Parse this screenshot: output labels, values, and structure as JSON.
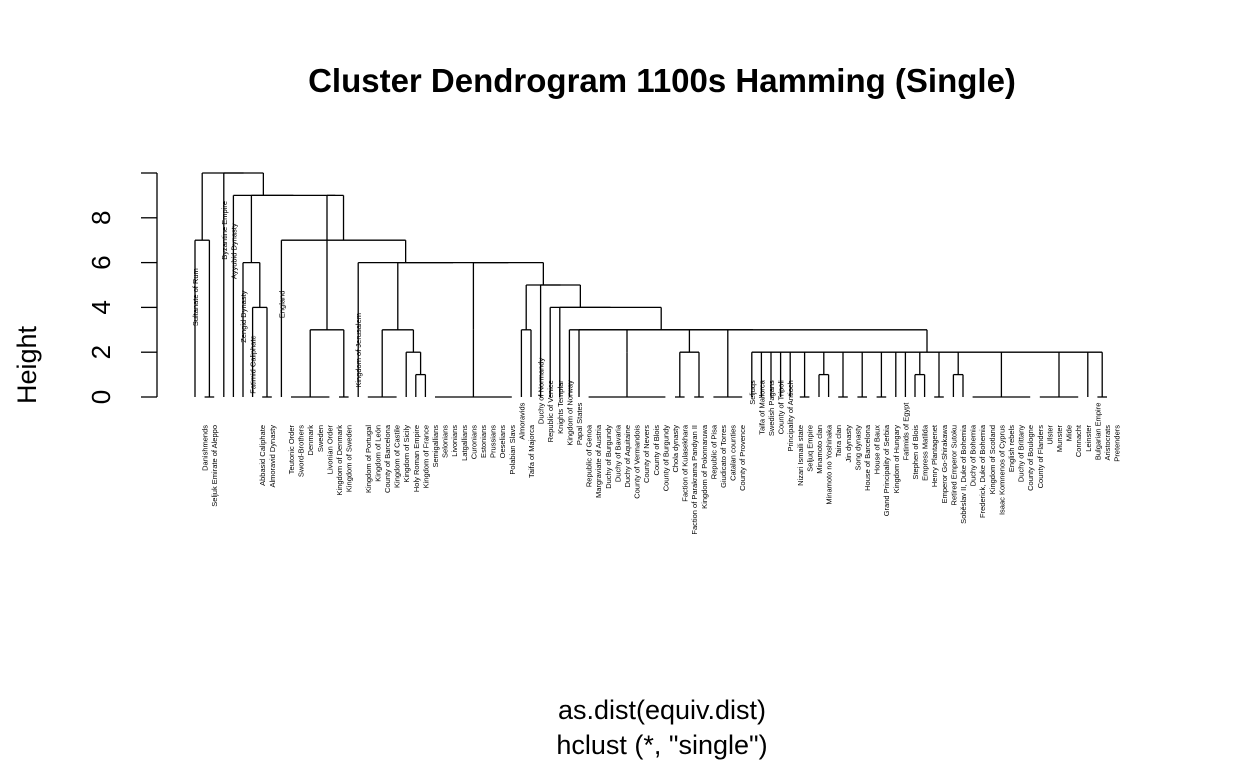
{
  "chart_data": {
    "type": "dendrogram",
    "title": "Cluster Dendrogram 1100s Hamming (Single)",
    "ylabel": "Height",
    "xlabel": "as.dist(equiv.dist)",
    "sub": "hclust (*, \"single\")",
    "ylim": [
      0,
      10
    ],
    "yticks": [
      0,
      2,
      4,
      6,
      8
    ],
    "leaves": [
      {
        "name": "Sultanate of Rum",
        "height": 7
      },
      {
        "name": "Danishmends",
        "height": 0
      },
      {
        "name": "Seljuk Emirate of Aleppo",
        "height": 0
      },
      {
        "name": "Byzantine Empire",
        "height": 10
      },
      {
        "name": "Ayyubid Dynasty",
        "height": 9
      },
      {
        "name": "Zengid Dynasty",
        "height": 6
      },
      {
        "name": "Fatimid Caliphate",
        "height": 4
      },
      {
        "name": "Abbasid Caliphate",
        "height": 0
      },
      {
        "name": "Almoravid Dynasty",
        "height": 0
      },
      {
        "name": "England",
        "height": 6
      },
      {
        "name": "Teutonic Order",
        "height": 0
      },
      {
        "name": "Sword-Brothers",
        "height": 0
      },
      {
        "name": "Denmark",
        "height": 0
      },
      {
        "name": "Sweden",
        "height": 0
      },
      {
        "name": "Livonian Order",
        "height": 0
      },
      {
        "name": "Kingdom of Denmark",
        "height": 0
      },
      {
        "name": "Kingdom of Sweden",
        "height": 0
      },
      {
        "name": "Kingdom of Jerusalem",
        "height": 5
      },
      {
        "name": "Kingdom of Portugal",
        "height": 0
      },
      {
        "name": "Kingdom of León",
        "height": 0
      },
      {
        "name": "County of Barcelona",
        "height": 0
      },
      {
        "name": "Kingdom of Castile",
        "height": 0
      },
      {
        "name": "Kingdom of Sicily",
        "height": 0
      },
      {
        "name": "Holy Roman Empire",
        "height": 0
      },
      {
        "name": "Kingdom of France",
        "height": 0
      },
      {
        "name": "Semigallians",
        "height": 0
      },
      {
        "name": "Selonians",
        "height": 0
      },
      {
        "name": "Livonians",
        "height": 0
      },
      {
        "name": "Latgallians",
        "height": 0
      },
      {
        "name": "Curonians",
        "height": 0
      },
      {
        "name": "Estonians",
        "height": 0
      },
      {
        "name": "Prussians",
        "height": 0
      },
      {
        "name": "Oeselians",
        "height": 0
      },
      {
        "name": "Polabian Slavs",
        "height": 0
      },
      {
        "name": "Almoravids",
        "height": 1
      },
      {
        "name": "Taifa of Majorca",
        "height": 0
      },
      {
        "name": "Duchy of Normandy",
        "height": 3
      },
      {
        "name": "Republic of Venice",
        "height": 2
      },
      {
        "name": "Knights Templar",
        "height": 2
      },
      {
        "name": "Kingdom of Norway",
        "height": 2
      },
      {
        "name": "Papal States",
        "height": 1
      },
      {
        "name": "Republic of Genoa",
        "height": 0
      },
      {
        "name": "Margraviate of Austria",
        "height": 0
      },
      {
        "name": "Duchy of Burgundy",
        "height": 0
      },
      {
        "name": "Duchy of Bavaria",
        "height": 0
      },
      {
        "name": "Duchy of Aquitaine",
        "height": 0
      },
      {
        "name": "County of Vermandois",
        "height": 0
      },
      {
        "name": "County of Nevers",
        "height": 0
      },
      {
        "name": "County of Blois",
        "height": 0
      },
      {
        "name": "County of Burgundy",
        "height": 0
      },
      {
        "name": "Chola dynasty",
        "height": 0
      },
      {
        "name": "Faction of Kulasekhara",
        "height": 0
      },
      {
        "name": "Faction of Parakrama Pandyan II",
        "height": 0
      },
      {
        "name": "Kingdom of Polonnaruwa",
        "height": 0
      },
      {
        "name": "Republic of Pisa",
        "height": 0
      },
      {
        "name": "Giudicato of Torres",
        "height": 0
      },
      {
        "name": "Catalan counties",
        "height": 0
      },
      {
        "name": "County of Provence",
        "height": 0
      },
      {
        "name": "Seljuqs",
        "height": 2
      },
      {
        "name": "Taifa of Mallorca",
        "height": 2
      },
      {
        "name": "Swedish Pagans",
        "height": 2
      },
      {
        "name": "County of Tripoli",
        "height": 2
      },
      {
        "name": "Principality of Antioch",
        "height": 2
      },
      {
        "name": "Nizari Ismaili state",
        "height": 0
      },
      {
        "name": "Seljuq Empire",
        "height": 0
      },
      {
        "name": "Minamoto clan",
        "height": 0
      },
      {
        "name": "Minamoto no Yoshinaka",
        "height": 0
      },
      {
        "name": "Taira clan",
        "height": 0
      },
      {
        "name": "Jin dynasty",
        "height": 0
      },
      {
        "name": "Song dynasty",
        "height": 0
      },
      {
        "name": "House of Barcelona",
        "height": 0
      },
      {
        "name": "House of Baux",
        "height": 0
      },
      {
        "name": "Grand Principality of Serbia",
        "height": 0
      },
      {
        "name": "Kingdom of Hungary",
        "height": 0
      },
      {
        "name": "Fatimids of Egypt",
        "height": 1
      },
      {
        "name": "Stephen of Blois",
        "height": 0
      },
      {
        "name": "Empress Matilda",
        "height": 0
      },
      {
        "name": "Henry Plantagenet",
        "height": 0
      },
      {
        "name": "Emperor Go-Shirakawa",
        "height": 0
      },
      {
        "name": "Retired Emperor Sutoku",
        "height": 0
      },
      {
        "name": "Soběslav II, Duke of Bohemia",
        "height": 0
      },
      {
        "name": "Duchy of Bohemia",
        "height": 0
      },
      {
        "name": "Frederick, Duke of Bohemia",
        "height": 0
      },
      {
        "name": "Kingdom of Scotland",
        "height": 0
      },
      {
        "name": "Isaac Komnenos of Cyprus",
        "height": 0
      },
      {
        "name": "English rebels",
        "height": 0
      },
      {
        "name": "Duchy of Brittany",
        "height": 0
      },
      {
        "name": "County of Boulogne",
        "height": 0
      },
      {
        "name": "County of Flanders",
        "height": 0
      },
      {
        "name": "Ulster",
        "height": 0
      },
      {
        "name": "Munster",
        "height": 0
      },
      {
        "name": "Mide",
        "height": 0
      },
      {
        "name": "Connacht",
        "height": 0
      },
      {
        "name": "Leinster",
        "height": 0
      },
      {
        "name": "Bulgarian Empire",
        "height": 1
      },
      {
        "name": "Aristocrats",
        "height": 0
      },
      {
        "name": "Pretenders",
        "height": 0
      }
    ]
  }
}
